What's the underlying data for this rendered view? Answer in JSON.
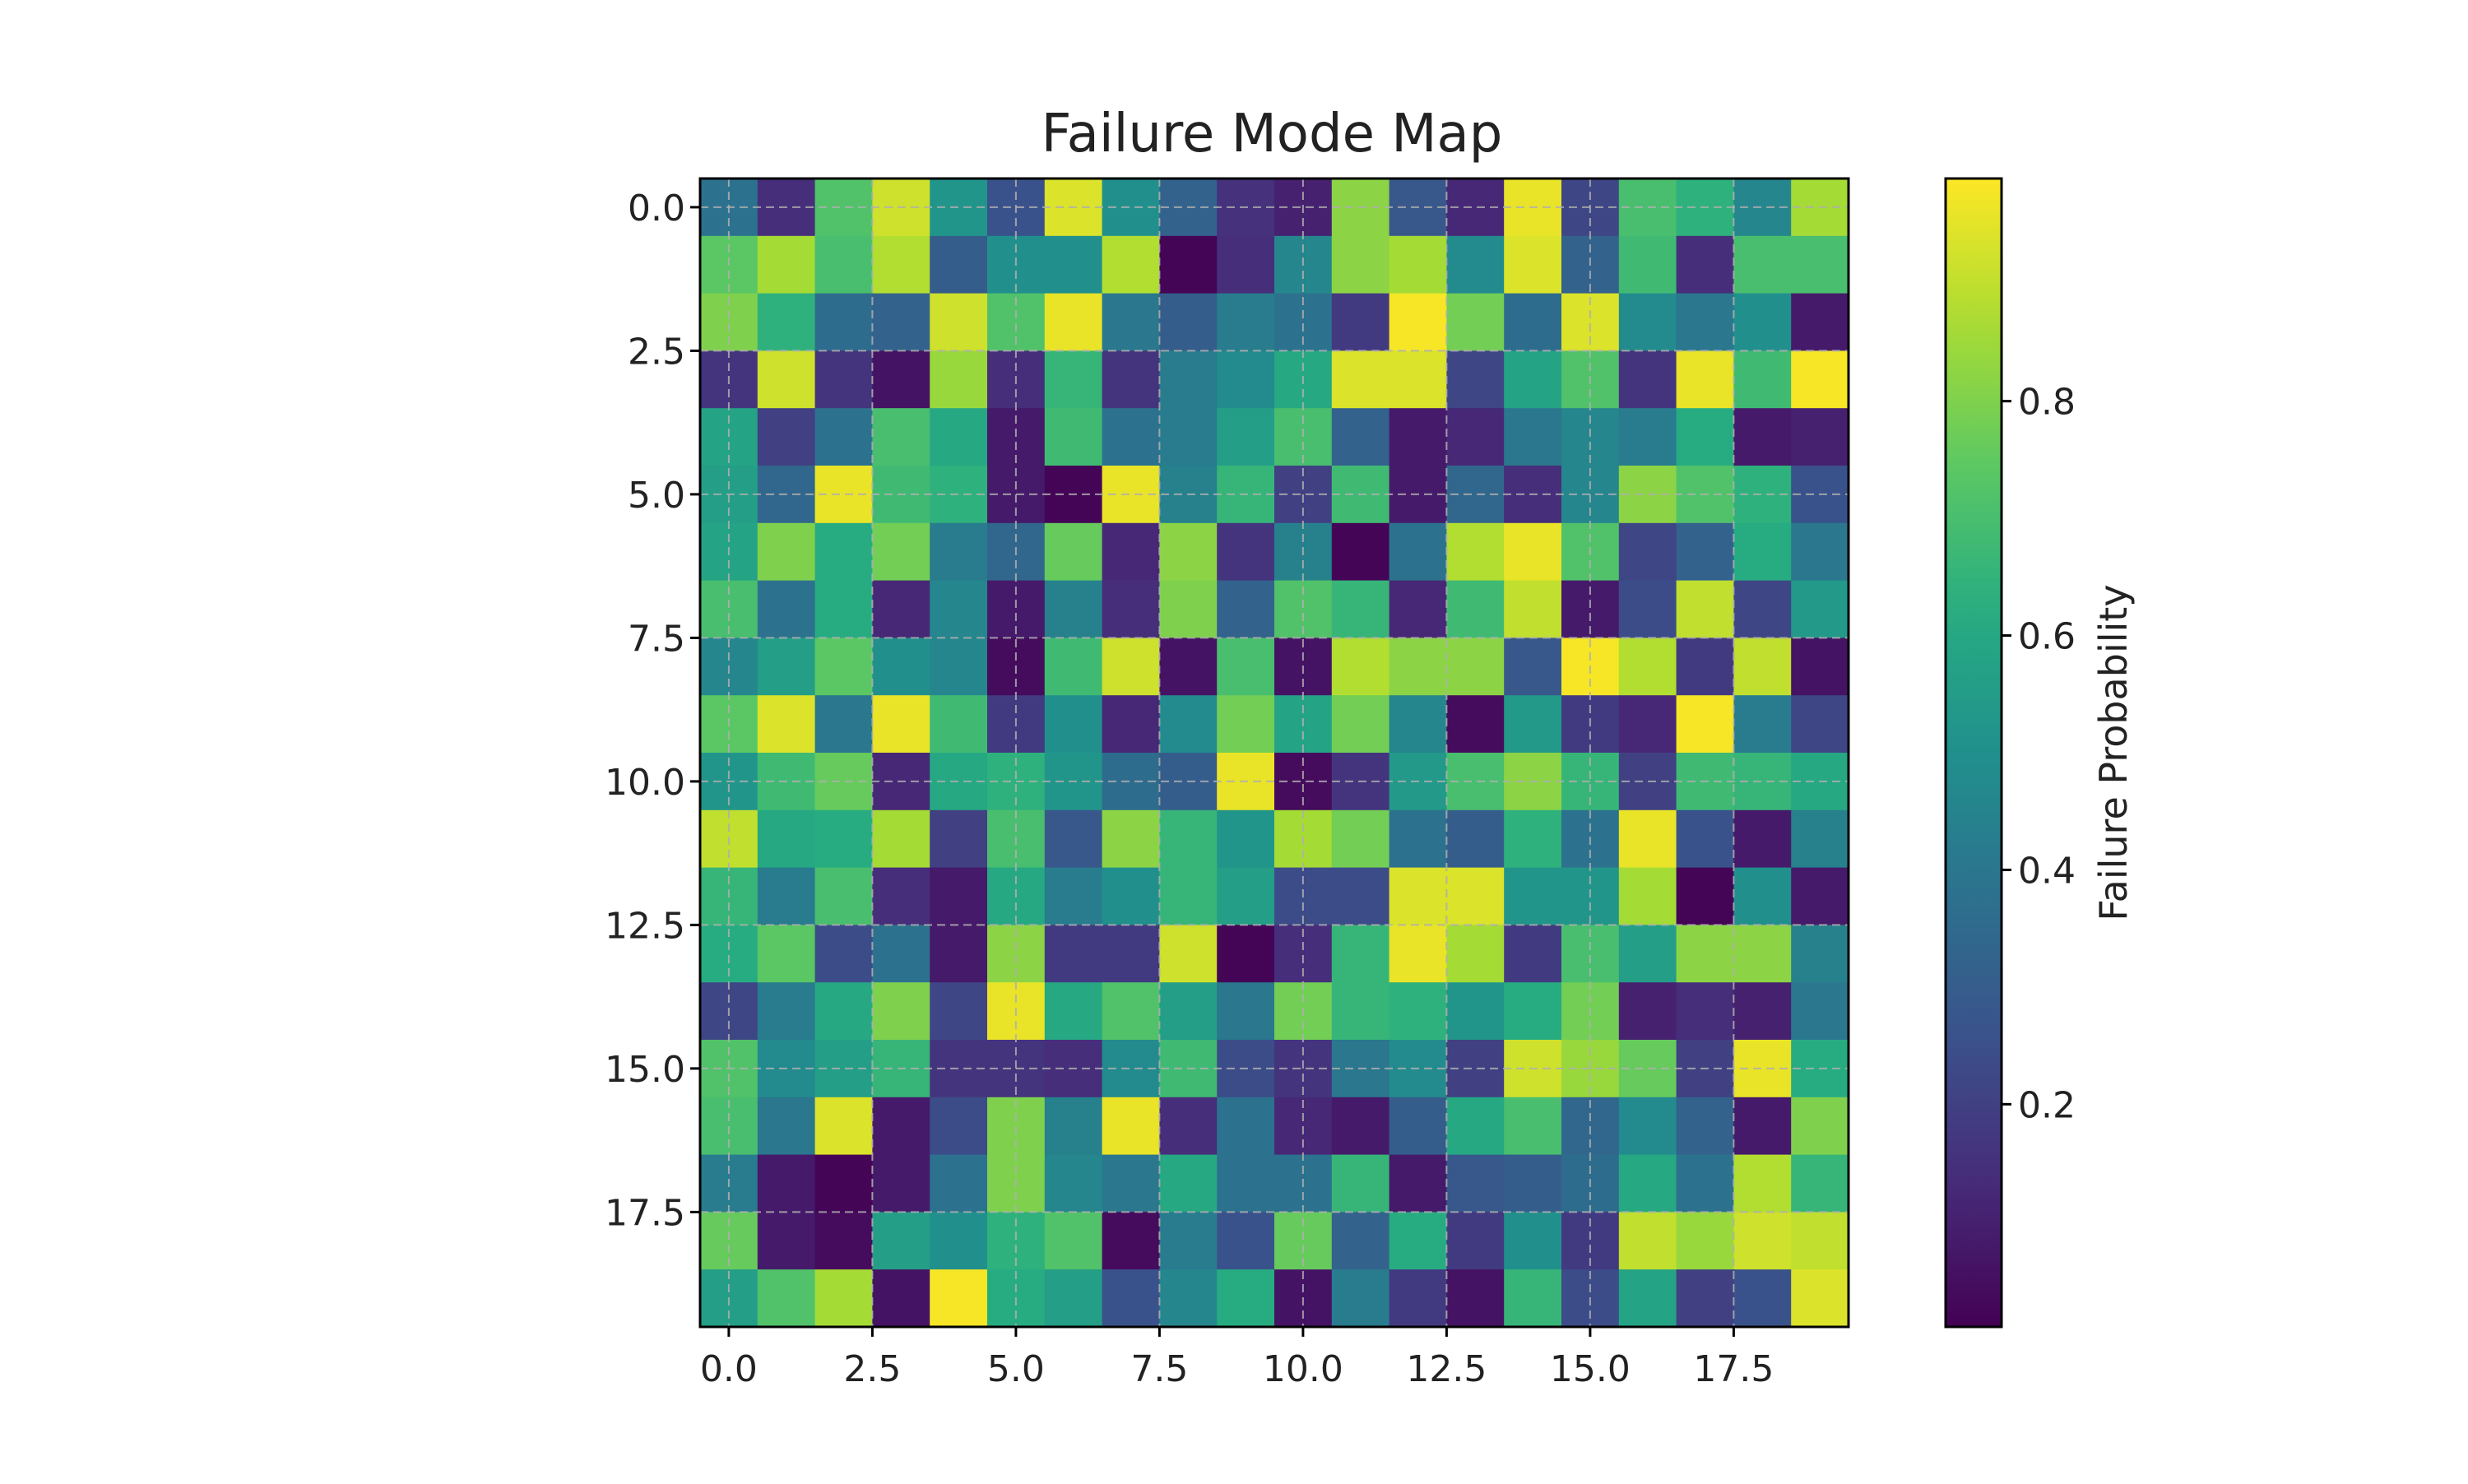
{
  "chart_data": {
    "type": "heatmap",
    "title": "Failure Mode Map",
    "xlabel": "",
    "ylabel": "",
    "colorbar_label": "Failure Probability",
    "colormap": "viridis",
    "xlim": [
      -0.5,
      19.5
    ],
    "ylim": [
      19.5,
      -0.5
    ],
    "xticks": [
      0.0,
      2.5,
      5.0,
      7.5,
      10.0,
      12.5,
      15.0,
      17.5
    ],
    "xtick_labels": [
      "0.0",
      "2.5",
      "5.0",
      "7.5",
      "10.0",
      "12.5",
      "15.0",
      "17.5"
    ],
    "yticks": [
      0.0,
      2.5,
      5.0,
      7.5,
      10.0,
      12.5,
      15.0,
      17.5
    ],
    "ytick_labels": [
      "0.0",
      "2.5",
      "5.0",
      "7.5",
      "10.0",
      "12.5",
      "15.0",
      "17.5"
    ],
    "colorbar_range": [
      0.01,
      0.99
    ],
    "colorbar_ticks": [
      0.2,
      0.4,
      0.6,
      0.8
    ],
    "colorbar_tick_labels": [
      "0.2",
      "0.4",
      "0.6",
      "0.8"
    ],
    "grid": true,
    "values": [
      [
        0.38,
        0.14,
        0.72,
        0.92,
        0.52,
        0.26,
        0.94,
        0.5,
        0.32,
        0.15,
        0.1,
        0.82,
        0.28,
        0.12,
        0.96,
        0.22,
        0.7,
        0.64,
        0.46,
        0.86
      ],
      [
        0.74,
        0.86,
        0.7,
        0.88,
        0.3,
        0.5,
        0.5,
        0.88,
        0.02,
        0.14,
        0.46,
        0.82,
        0.86,
        0.48,
        0.94,
        0.32,
        0.68,
        0.14,
        0.7,
        0.7
      ],
      [
        0.8,
        0.64,
        0.36,
        0.32,
        0.92,
        0.72,
        0.96,
        0.4,
        0.3,
        0.42,
        0.38,
        0.18,
        0.98,
        0.78,
        0.36,
        0.94,
        0.48,
        0.4,
        0.5,
        0.08
      ],
      [
        0.16,
        0.92,
        0.16,
        0.06,
        0.84,
        0.14,
        0.66,
        0.16,
        0.42,
        0.48,
        0.6,
        0.94,
        0.94,
        0.22,
        0.58,
        0.72,
        0.16,
        0.96,
        0.68,
        0.98
      ],
      [
        0.58,
        0.2,
        0.38,
        0.7,
        0.6,
        0.08,
        0.68,
        0.38,
        0.42,
        0.56,
        0.7,
        0.32,
        0.08,
        0.12,
        0.4,
        0.46,
        0.42,
        0.62,
        0.08,
        0.1
      ],
      [
        0.56,
        0.34,
        0.96,
        0.68,
        0.64,
        0.08,
        0.02,
        0.96,
        0.44,
        0.66,
        0.2,
        0.68,
        0.08,
        0.34,
        0.14,
        0.46,
        0.82,
        0.72,
        0.64,
        0.26
      ],
      [
        0.58,
        0.8,
        0.62,
        0.78,
        0.42,
        0.34,
        0.76,
        0.12,
        0.82,
        0.16,
        0.44,
        0.02,
        0.38,
        0.88,
        0.96,
        0.72,
        0.22,
        0.32,
        0.62,
        0.4
      ],
      [
        0.7,
        0.38,
        0.62,
        0.12,
        0.46,
        0.08,
        0.44,
        0.14,
        0.8,
        0.32,
        0.72,
        0.66,
        0.12,
        0.68,
        0.9,
        0.08,
        0.24,
        0.9,
        0.22,
        0.54
      ],
      [
        0.46,
        0.56,
        0.74,
        0.5,
        0.46,
        0.04,
        0.68,
        0.92,
        0.06,
        0.7,
        0.06,
        0.88,
        0.82,
        0.82,
        0.28,
        0.98,
        0.88,
        0.18,
        0.9,
        0.06
      ],
      [
        0.74,
        0.94,
        0.4,
        0.96,
        0.68,
        0.18,
        0.5,
        0.12,
        0.48,
        0.78,
        0.58,
        0.78,
        0.46,
        0.04,
        0.54,
        0.18,
        0.12,
        0.98,
        0.42,
        0.22
      ],
      [
        0.52,
        0.68,
        0.76,
        0.12,
        0.6,
        0.64,
        0.52,
        0.36,
        0.3,
        0.96,
        0.04,
        0.16,
        0.54,
        0.7,
        0.82,
        0.66,
        0.2,
        0.68,
        0.66,
        0.6
      ],
      [
        0.9,
        0.6,
        0.62,
        0.86,
        0.2,
        0.7,
        0.28,
        0.82,
        0.66,
        0.52,
        0.86,
        0.78,
        0.38,
        0.3,
        0.64,
        0.38,
        0.96,
        0.26,
        0.08,
        0.44
      ],
      [
        0.66,
        0.42,
        0.7,
        0.14,
        0.08,
        0.6,
        0.42,
        0.5,
        0.66,
        0.56,
        0.24,
        0.24,
        0.94,
        0.94,
        0.52,
        0.52,
        0.86,
        0.02,
        0.5,
        0.08
      ],
      [
        0.62,
        0.74,
        0.24,
        0.38,
        0.08,
        0.82,
        0.18,
        0.18,
        0.92,
        0.02,
        0.14,
        0.66,
        0.96,
        0.86,
        0.18,
        0.7,
        0.56,
        0.82,
        0.82,
        0.44
      ],
      [
        0.22,
        0.42,
        0.6,
        0.8,
        0.22,
        0.96,
        0.6,
        0.72,
        0.56,
        0.4,
        0.78,
        0.66,
        0.64,
        0.52,
        0.62,
        0.78,
        0.1,
        0.14,
        0.1,
        0.4
      ],
      [
        0.72,
        0.48,
        0.56,
        0.66,
        0.16,
        0.16,
        0.14,
        0.48,
        0.68,
        0.24,
        0.16,
        0.4,
        0.48,
        0.2,
        0.92,
        0.84,
        0.76,
        0.2,
        0.96,
        0.62
      ],
      [
        0.7,
        0.4,
        0.94,
        0.08,
        0.24,
        0.8,
        0.44,
        0.96,
        0.14,
        0.38,
        0.12,
        0.08,
        0.3,
        0.6,
        0.7,
        0.34,
        0.48,
        0.32,
        0.08,
        0.8
      ],
      [
        0.42,
        0.08,
        0.02,
        0.08,
        0.38,
        0.8,
        0.46,
        0.4,
        0.6,
        0.38,
        0.38,
        0.66,
        0.08,
        0.28,
        0.3,
        0.36,
        0.6,
        0.38,
        0.88,
        0.66
      ],
      [
        0.76,
        0.08,
        0.04,
        0.56,
        0.5,
        0.64,
        0.72,
        0.04,
        0.42,
        0.26,
        0.76,
        0.32,
        0.62,
        0.18,
        0.5,
        0.18,
        0.9,
        0.84,
        0.92,
        0.9
      ],
      [
        0.56,
        0.72,
        0.86,
        0.06,
        0.98,
        0.62,
        0.56,
        0.26,
        0.46,
        0.62,
        0.06,
        0.42,
        0.18,
        0.06,
        0.66,
        0.24,
        0.58,
        0.2,
        0.26,
        0.94
      ]
    ]
  }
}
